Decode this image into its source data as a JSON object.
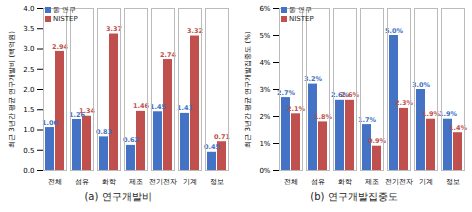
{
  "chart_data": [
    {
      "type": "bar",
      "title": "(a) 연구개발비",
      "y_label": "최근 3년간 평균 연구개발비 (백억원)",
      "categories": [
        "전체",
        "섬유",
        "화학",
        "제조",
        "전기전자",
        "기계",
        "정보"
      ],
      "series": [
        {
          "name": "동 연구",
          "color": "#4472c4",
          "values": [
            1.06,
            1.26,
            0.83,
            0.62,
            1.45,
            1.41,
            0.45
          ]
        },
        {
          "name": "NISTEP",
          "color": "#c0504d",
          "values": [
            2.94,
            1.34,
            3.37,
            1.46,
            2.74,
            3.32,
            0.71
          ]
        }
      ],
      "ylim": [
        0,
        4
      ],
      "yticks": [
        {
          "value": 0,
          "label": "0.0"
        },
        {
          "value": 0.5,
          "label": "0.5"
        },
        {
          "value": 1,
          "label": "1.0"
        },
        {
          "value": 1.5,
          "label": "1.5"
        },
        {
          "value": 2,
          "label": "2.0"
        },
        {
          "value": 2.5,
          "label": "2.5"
        },
        {
          "value": 3,
          "label": "3.0"
        },
        {
          "value": 3.5,
          "label": "3.5"
        },
        {
          "value": 4,
          "label": "4.0"
        }
      ],
      "grid": false,
      "data_labels": true,
      "legend": "top-left"
    },
    {
      "type": "bar",
      "title": "(b) 연구개발집중도",
      "y_label": "최근 3년간 평균 연구개발집중도 (%)",
      "categories": [
        "전체",
        "섬유",
        "화학",
        "제조",
        "전기전자",
        "기계",
        "정보"
      ],
      "series": [
        {
          "name": "동 연구",
          "color": "#4472c4",
          "values": [
            2.7,
            3.2,
            2.6,
            1.7,
            5.0,
            3.0,
            1.9
          ],
          "value_labels": [
            "2.7%",
            "3.2%",
            "2.6%",
            "1.7%",
            "5.0%",
            "3.0%",
            "1.9%"
          ]
        },
        {
          "name": "NISTEP",
          "color": "#c0504d",
          "values": [
            2.1,
            1.8,
            2.6,
            0.9,
            2.3,
            1.9,
            1.4
          ],
          "value_labels": [
            "2.1%",
            "1.8%",
            "2.6%",
            "0.9%",
            "2.3%",
            "1.9%",
            "1.4%"
          ]
        }
      ],
      "ylim": [
        0,
        6
      ],
      "yticks": [
        {
          "value": 0,
          "label": "0%"
        },
        {
          "value": 1,
          "label": "1%"
        },
        {
          "value": 2,
          "label": "2%"
        },
        {
          "value": 3,
          "label": "3%"
        },
        {
          "value": 4,
          "label": "4%"
        },
        {
          "value": 5,
          "label": "5%"
        },
        {
          "value": 6,
          "label": "6%"
        }
      ],
      "grid": false,
      "data_labels": true,
      "legend": "top-left"
    }
  ]
}
